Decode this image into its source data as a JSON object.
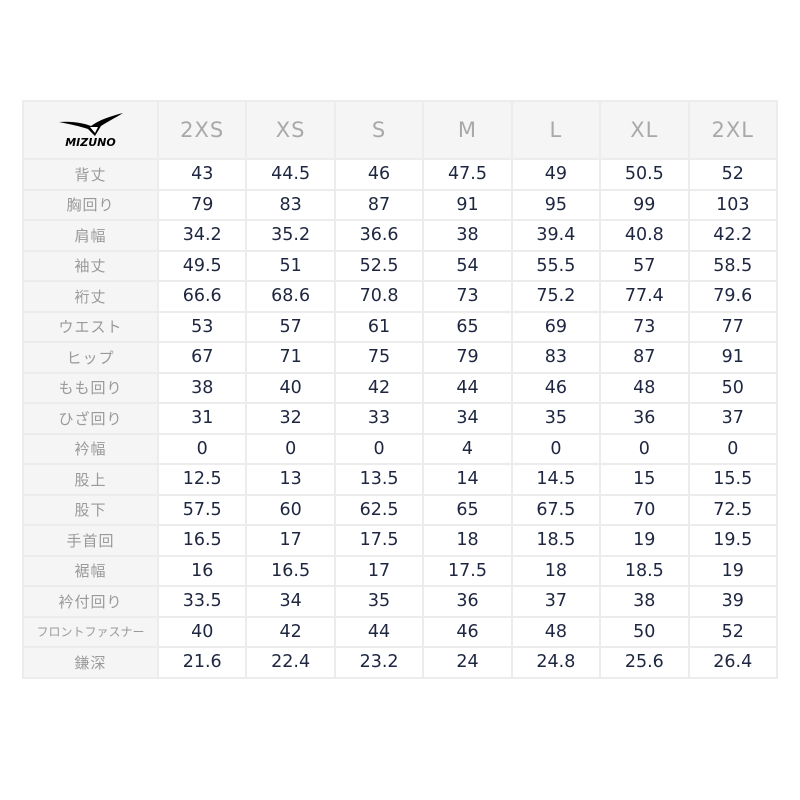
{
  "brand": {
    "logo_text": "MIZUNO"
  },
  "columns": [
    "2XS",
    "XS",
    "S",
    "M",
    "L",
    "XL",
    "2XL"
  ],
  "rows": [
    {
      "label": "背丈",
      "values": [
        "43",
        "44.5",
        "46",
        "47.5",
        "49",
        "50.5",
        "52"
      ]
    },
    {
      "label": "胸回り",
      "values": [
        "79",
        "83",
        "87",
        "91",
        "95",
        "99",
        "103"
      ]
    },
    {
      "label": "肩幅",
      "values": [
        "34.2",
        "35.2",
        "36.6",
        "38",
        "39.4",
        "40.8",
        "42.2"
      ]
    },
    {
      "label": "袖丈",
      "values": [
        "49.5",
        "51",
        "52.5",
        "54",
        "55.5",
        "57",
        "58.5"
      ]
    },
    {
      "label": "裄丈",
      "values": [
        "66.6",
        "68.6",
        "70.8",
        "73",
        "75.2",
        "77.4",
        "79.6"
      ]
    },
    {
      "label": "ウエスト",
      "values": [
        "53",
        "57",
        "61",
        "65",
        "69",
        "73",
        "77"
      ]
    },
    {
      "label": "ヒップ",
      "values": [
        "67",
        "71",
        "75",
        "79",
        "83",
        "87",
        "91"
      ]
    },
    {
      "label": "もも回り",
      "values": [
        "38",
        "40",
        "42",
        "44",
        "46",
        "48",
        "50"
      ]
    },
    {
      "label": "ひざ回り",
      "values": [
        "31",
        "32",
        "33",
        "34",
        "35",
        "36",
        "37"
      ]
    },
    {
      "label": "衿幅",
      "values": [
        "0",
        "0",
        "0",
        "4",
        "0",
        "0",
        "0"
      ]
    },
    {
      "label": "股上",
      "values": [
        "12.5",
        "13",
        "13.5",
        "14",
        "14.5",
        "15",
        "15.5"
      ]
    },
    {
      "label": "股下",
      "values": [
        "57.5",
        "60",
        "62.5",
        "65",
        "67.5",
        "70",
        "72.5"
      ]
    },
    {
      "label": "手首回",
      "values": [
        "16.5",
        "17",
        "17.5",
        "18",
        "18.5",
        "19",
        "19.5"
      ]
    },
    {
      "label": "裾幅",
      "values": [
        "16",
        "16.5",
        "17",
        "17.5",
        "18",
        "18.5",
        "19"
      ]
    },
    {
      "label": "衿付回り",
      "values": [
        "33.5",
        "34",
        "35",
        "36",
        "37",
        "38",
        "39"
      ]
    },
    {
      "label": "フロントファスナー",
      "values": [
        "40",
        "42",
        "44",
        "46",
        "48",
        "50",
        "52"
      ]
    },
    {
      "label": "鎌深",
      "values": [
        "21.6",
        "22.4",
        "23.2",
        "24",
        "24.8",
        "25.6",
        "26.4"
      ]
    }
  ]
}
